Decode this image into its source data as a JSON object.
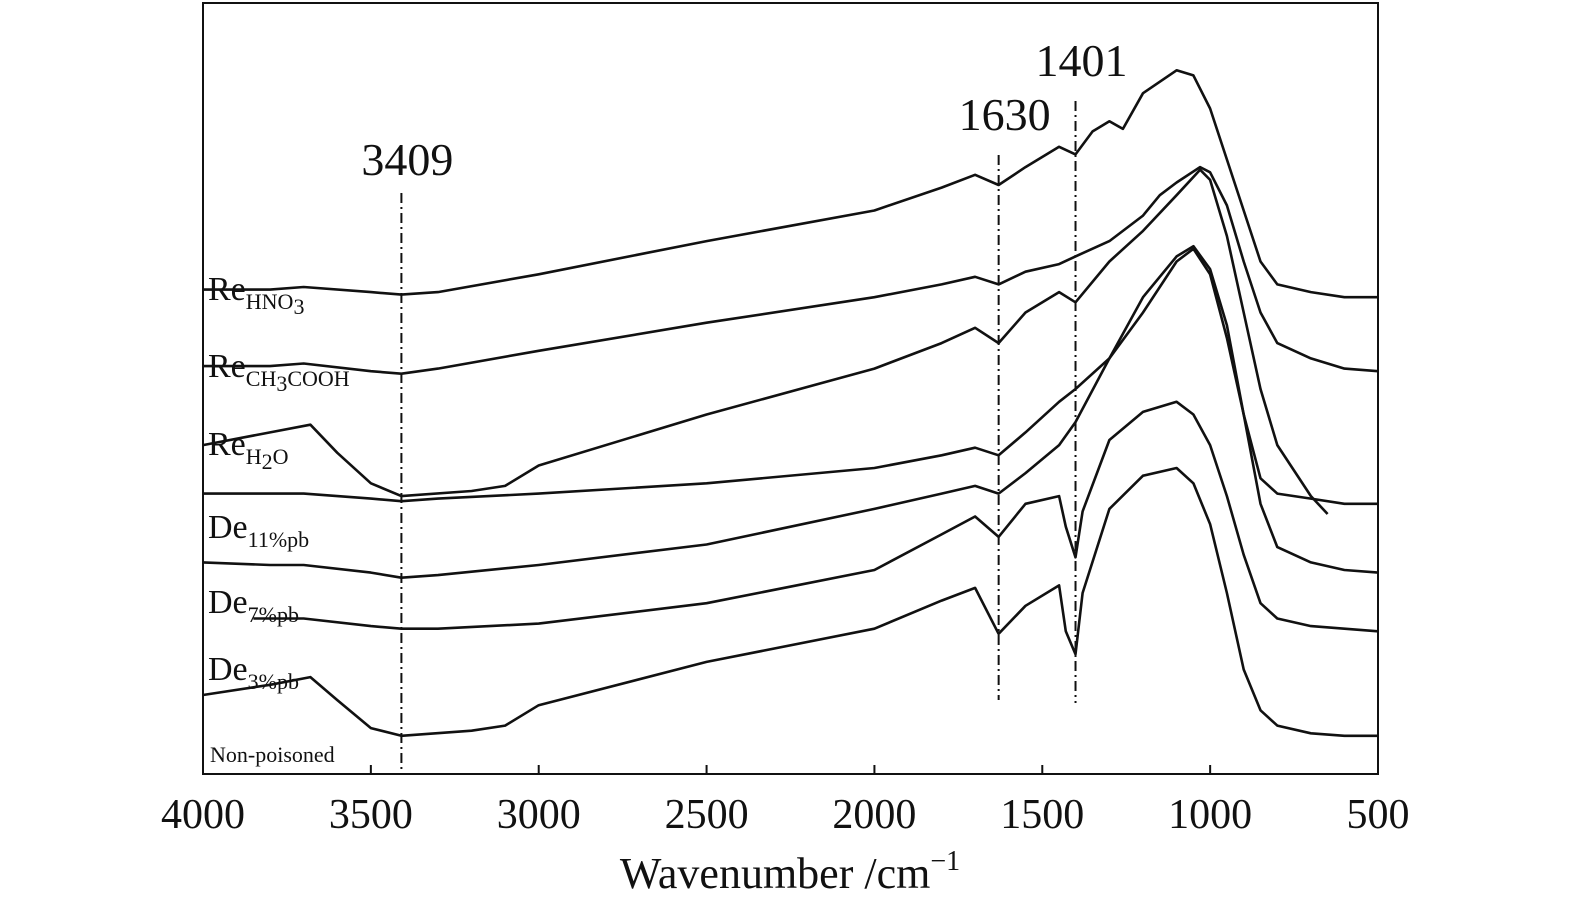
{
  "chart_data": {
    "type": "line",
    "title": "",
    "xlabel": "Wavenumber /cm",
    "xlabel_sup": "−1",
    "ylabel": "",
    "xlim": [
      4000,
      500
    ],
    "x_reversed": true,
    "xticks": [
      "4000",
      "3500",
      "3000",
      "2500",
      "2000",
      "1500",
      "1000",
      "500"
    ],
    "y_axis_shown": false,
    "grid": false,
    "annotations": [
      {
        "text": "3409",
        "x": 3409
      },
      {
        "text": "1630",
        "x": 1630
      },
      {
        "text": "1401",
        "x": 1401
      }
    ],
    "series_order_top_to_bottom": [
      "Re_HNO3",
      "Re_CH3COOH",
      "Re_H2O",
      "De_11%pb",
      "De_7%pb",
      "De_3%pb",
      "Non-poisoned"
    ],
    "series": [
      {
        "name": "Re_HNO3",
        "label_main": "Re",
        "label_sub_parts": [
          "HNO",
          "3"
        ],
        "x": [
          4000,
          3800,
          3700,
          3500,
          3409,
          3300,
          3000,
          2500,
          2000,
          1800,
          1700,
          1630,
          1550,
          1450,
          1401,
          1350,
          1300,
          1260,
          1200,
          1100,
          1050,
          1000,
          950,
          900,
          850,
          800,
          700,
          600,
          500
        ],
        "y": [
          1.79,
          1.79,
          1.8,
          1.78,
          1.77,
          1.78,
          1.85,
          1.98,
          2.1,
          2.19,
          2.24,
          2.2,
          2.27,
          2.35,
          2.32,
          2.41,
          2.45,
          2.42,
          2.56,
          2.65,
          2.63,
          2.5,
          2.3,
          2.1,
          1.9,
          1.81,
          1.78,
          1.76,
          1.76
        ]
      },
      {
        "name": "Re_CH3COOH",
        "label_main": "Re",
        "label_sub_parts": [
          "CH",
          "3",
          "COOH"
        ],
        "x": [
          4000,
          3800,
          3700,
          3500,
          3409,
          3300,
          3000,
          2500,
          2000,
          1800,
          1700,
          1630,
          1550,
          1450,
          1401,
          1300,
          1200,
          1150,
          1100,
          1030,
          1000,
          950,
          900,
          850,
          800,
          700,
          600,
          500
        ],
        "y": [
          1.49,
          1.49,
          1.5,
          1.47,
          1.46,
          1.48,
          1.55,
          1.66,
          1.76,
          1.81,
          1.84,
          1.81,
          1.86,
          1.89,
          1.92,
          1.98,
          2.08,
          2.16,
          2.21,
          2.27,
          2.25,
          2.12,
          1.9,
          1.7,
          1.58,
          1.52,
          1.48,
          1.47
        ]
      },
      {
        "name": "Re_H2O",
        "label_main": "Re",
        "label_sub_parts": [
          "H",
          "2",
          "O"
        ],
        "x": [
          4000,
          3800,
          3680,
          3600,
          3500,
          3409,
          3200,
          3100,
          3000,
          2500,
          2000,
          1800,
          1700,
          1630,
          1550,
          1450,
          1401,
          1300,
          1200,
          1100,
          1030,
          1000,
          950,
          900,
          850,
          800,
          750,
          700,
          650
        ],
        "y": [
          1.18,
          1.23,
          1.26,
          1.15,
          1.03,
          0.98,
          1.0,
          1.02,
          1.1,
          1.3,
          1.48,
          1.58,
          1.64,
          1.58,
          1.7,
          1.78,
          1.74,
          1.9,
          2.02,
          2.16,
          2.26,
          2.22,
          2.0,
          1.7,
          1.4,
          1.18,
          1.08,
          0.98,
          0.91
        ]
      },
      {
        "name": "De_11%pb",
        "label_main": "De",
        "label_sub_parts": [
          "11%pb"
        ],
        "x": [
          4000,
          3800,
          3700,
          3500,
          3409,
          3300,
          3000,
          2500,
          2000,
          1800,
          1700,
          1630,
          1550,
          1450,
          1401,
          1300,
          1200,
          1100,
          1050,
          1000,
          950,
          900,
          850,
          800,
          700,
          600,
          500
        ],
        "y": [
          0.99,
          0.99,
          0.99,
          0.97,
          0.96,
          0.97,
          0.99,
          1.03,
          1.09,
          1.14,
          1.17,
          1.14,
          1.23,
          1.35,
          1.4,
          1.52,
          1.7,
          1.9,
          1.95,
          1.85,
          1.6,
          1.3,
          1.05,
          0.99,
          0.97,
          0.95,
          0.95
        ]
      },
      {
        "name": "De_7%pb",
        "label_main": "De",
        "label_sub_parts": [
          "7%pb"
        ],
        "x": [
          4000,
          3800,
          3700,
          3500,
          3409,
          3300,
          3000,
          2500,
          2000,
          1800,
          1700,
          1630,
          1550,
          1450,
          1401,
          1300,
          1200,
          1100,
          1050,
          1000,
          950,
          900,
          850,
          800,
          700,
          600,
          500
        ],
        "y": [
          0.72,
          0.71,
          0.71,
          0.68,
          0.66,
          0.67,
          0.71,
          0.79,
          0.93,
          0.99,
          1.02,
          0.99,
          1.07,
          1.18,
          1.27,
          1.52,
          1.76,
          1.92,
          1.96,
          1.87,
          1.65,
          1.3,
          0.95,
          0.78,
          0.72,
          0.69,
          0.68
        ]
      },
      {
        "name": "De_3%pb",
        "label_main": "De",
        "label_sub_parts": [
          "3%pb"
        ],
        "x": [
          3850,
          3700,
          3500,
          3409,
          3300,
          3000,
          2500,
          2000,
          1800,
          1700,
          1630,
          1550,
          1450,
          1430,
          1401,
          1380,
          1300,
          1200,
          1100,
          1050,
          1000,
          950,
          900,
          850,
          800,
          700,
          600,
          500
        ],
        "y": [
          0.5,
          0.5,
          0.47,
          0.46,
          0.46,
          0.48,
          0.56,
          0.69,
          0.83,
          0.9,
          0.82,
          0.95,
          0.98,
          0.86,
          0.74,
          0.92,
          1.2,
          1.31,
          1.35,
          1.3,
          1.18,
          0.98,
          0.75,
          0.56,
          0.5,
          0.47,
          0.46,
          0.45
        ]
      },
      {
        "name": "Non-poisoned",
        "label_main": "Non-poisoned",
        "label_sub_parts": [],
        "x": [
          4000,
          3800,
          3680,
          3600,
          3500,
          3409,
          3200,
          3100,
          3000,
          2500,
          2000,
          1800,
          1700,
          1630,
          1550,
          1450,
          1430,
          1401,
          1380,
          1300,
          1200,
          1100,
          1050,
          1000,
          950,
          900,
          850,
          800,
          700,
          600,
          500
        ],
        "y": [
          0.2,
          0.24,
          0.27,
          0.18,
          0.07,
          0.04,
          0.06,
          0.08,
          0.16,
          0.33,
          0.46,
          0.57,
          0.62,
          0.44,
          0.55,
          0.63,
          0.45,
          0.36,
          0.6,
          0.93,
          1.06,
          1.09,
          1.03,
          0.87,
          0.6,
          0.3,
          0.14,
          0.08,
          0.05,
          0.04,
          0.04
        ]
      }
    ]
  }
}
